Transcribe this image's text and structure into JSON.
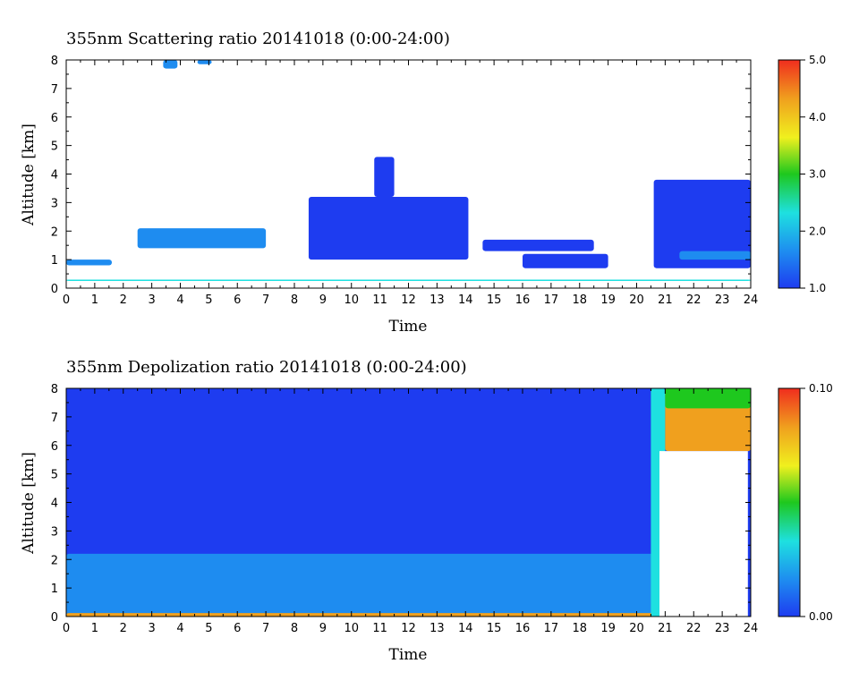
{
  "chart_data": [
    {
      "type": "heatmap",
      "title": "355nm Scattering ratio  20141018 (0:00-24:00)",
      "xlabel": "Time",
      "ylabel": "Altitude [km]",
      "xlim": [
        0,
        24
      ],
      "ylim": [
        0,
        8
      ],
      "x_ticks": [
        "0",
        "1",
        "2",
        "3",
        "4",
        "5",
        "6",
        "7",
        "8",
        "9",
        "10",
        "11",
        "12",
        "13",
        "14",
        "15",
        "16",
        "17",
        "18",
        "19",
        "20",
        "21",
        "22",
        "23",
        "24"
      ],
      "y_ticks": [
        "0",
        "1",
        "2",
        "3",
        "4",
        "5",
        "6",
        "7",
        "8"
      ],
      "colorbar": {
        "range": [
          1.0,
          5.0
        ],
        "ticks": [
          "1.0",
          "2.0",
          "3.0",
          "4.0",
          "5.0"
        ],
        "colors": [
          "#1e3cf0",
          "#1e8cf0",
          "#1ee0e0",
          "#1ec81e",
          "#f0f01e",
          "#f0a01e",
          "#f02d1e"
        ]
      },
      "background_color": "#ffffff",
      "features": [
        {
          "t0": 0.0,
          "t1": 1.6,
          "z0": 0.8,
          "z1": 1.0,
          "value": 1.4
        },
        {
          "t0": 2.5,
          "t1": 7.0,
          "z0": 1.4,
          "z1": 2.1,
          "value": 1.5
        },
        {
          "t0": 3.4,
          "t1": 3.9,
          "z0": 7.7,
          "z1": 8.0,
          "value": 1.5
        },
        {
          "t0": 4.6,
          "t1": 5.1,
          "z0": 7.85,
          "z1": 8.0,
          "value": 1.5
        },
        {
          "t0": 8.5,
          "t1": 14.1,
          "z0": 1.0,
          "z1": 3.2,
          "value": 1.3
        },
        {
          "t0": 10.8,
          "t1": 11.5,
          "z0": 3.2,
          "z1": 4.6,
          "value": 1.3
        },
        {
          "t0": 14.6,
          "t1": 18.5,
          "z0": 1.3,
          "z1": 1.7,
          "value": 1.3
        },
        {
          "t0": 16.0,
          "t1": 19.0,
          "z0": 0.7,
          "z1": 1.2,
          "value": 1.3
        },
        {
          "t0": 20.6,
          "t1": 24.0,
          "z0": 0.7,
          "z1": 3.8,
          "value": 1.3
        },
        {
          "t0": 21.5,
          "t1": 24.0,
          "z0": 1.0,
          "z1": 1.3,
          "value": 1.8
        },
        {
          "t0": 0.0,
          "t1": 24.0,
          "z0": 0.25,
          "z1": 0.3,
          "value": 2.5
        }
      ]
    },
    {
      "type": "heatmap",
      "title": "355nm Depolization ratio  20141018 (0:00-24:00)",
      "xlabel": "Time",
      "ylabel": "Altitude [km]",
      "xlim": [
        0,
        24
      ],
      "ylim": [
        0,
        8
      ],
      "x_ticks": [
        "0",
        "1",
        "2",
        "3",
        "4",
        "5",
        "6",
        "7",
        "8",
        "9",
        "10",
        "11",
        "12",
        "13",
        "14",
        "15",
        "16",
        "17",
        "18",
        "19",
        "20",
        "21",
        "22",
        "23",
        "24"
      ],
      "y_ticks": [
        "0",
        "1",
        "2",
        "3",
        "4",
        "5",
        "6",
        "7",
        "8"
      ],
      "colorbar": {
        "range": [
          0.0,
          0.1
        ],
        "ticks": [
          "0.00",
          "0.10"
        ],
        "colors": [
          "#1e3cf0",
          "#1e8cf0",
          "#1ee0e0",
          "#1ec81e",
          "#f0f01e",
          "#f0a01e",
          "#f02d1e"
        ]
      },
      "background_value": 0.005,
      "features": [
        {
          "t0": 0.0,
          "t1": 20.6,
          "z0": 0.0,
          "z1": 2.2,
          "value": 0.012
        },
        {
          "t0": 0.0,
          "t1": 20.6,
          "z0": 0.0,
          "z1": 0.6,
          "value": 0.02
        },
        {
          "t0": 0.0,
          "t1": 20.6,
          "z0": 0.0,
          "z1": 0.12,
          "value": 0.08
        },
        {
          "t0": 20.5,
          "t1": 21.0,
          "z0": 0.0,
          "z1": 8.0,
          "value": 0.04
        },
        {
          "t0": 21.0,
          "t1": 24.0,
          "z0": 5.8,
          "z1": 8.0,
          "value": 0.09
        },
        {
          "t0": 21.0,
          "t1": 24.0,
          "z0": 7.3,
          "z1": 8.0,
          "value": 0.05
        }
      ],
      "no_data_region": {
        "t0": 20.8,
        "t1": 23.9,
        "z0": 0.0,
        "z1": 5.8
      }
    }
  ]
}
